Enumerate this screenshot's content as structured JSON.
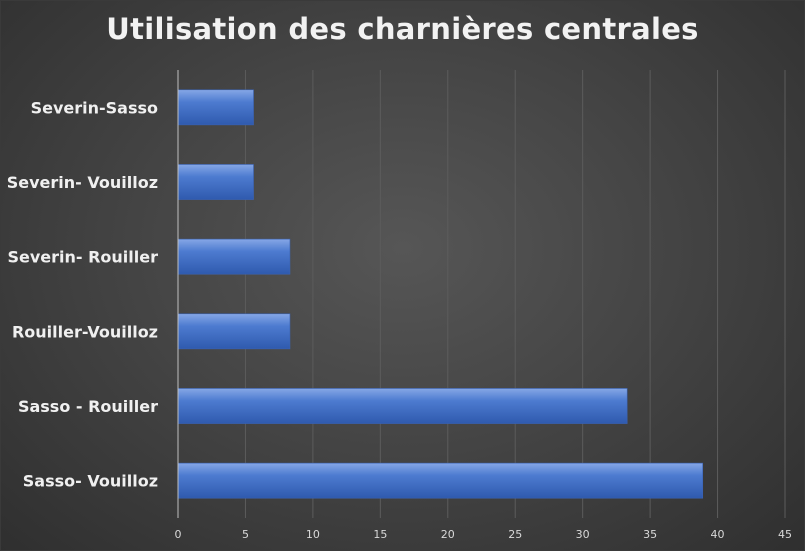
{
  "chart_data": {
    "type": "bar",
    "orientation": "horizontal",
    "title": "Utilisation des charnières centrales",
    "categories": [
      "Severin-Sasso",
      "Severin- Vouilloz",
      "Severin- Rouiller",
      "Rouiller-Vouilloz",
      "Sasso - Rouiller",
      "Sasso- Vouilloz"
    ],
    "values": [
      5.6,
      5.6,
      8.3,
      8.3,
      33.3,
      38.9
    ],
    "xlim": [
      0,
      45
    ],
    "xticks": [
      "0",
      "5",
      "10",
      "15",
      "20",
      "25",
      "30",
      "35",
      "40",
      "45"
    ],
    "xlabel": "",
    "ylabel": "",
    "grid": true,
    "legend": "none",
    "colors": {
      "bar": "#4472c4",
      "bar_light": "#7a9de0",
      "background": "#404040",
      "grid": "#5a5a5a",
      "text": "#f0f0f0"
    }
  }
}
